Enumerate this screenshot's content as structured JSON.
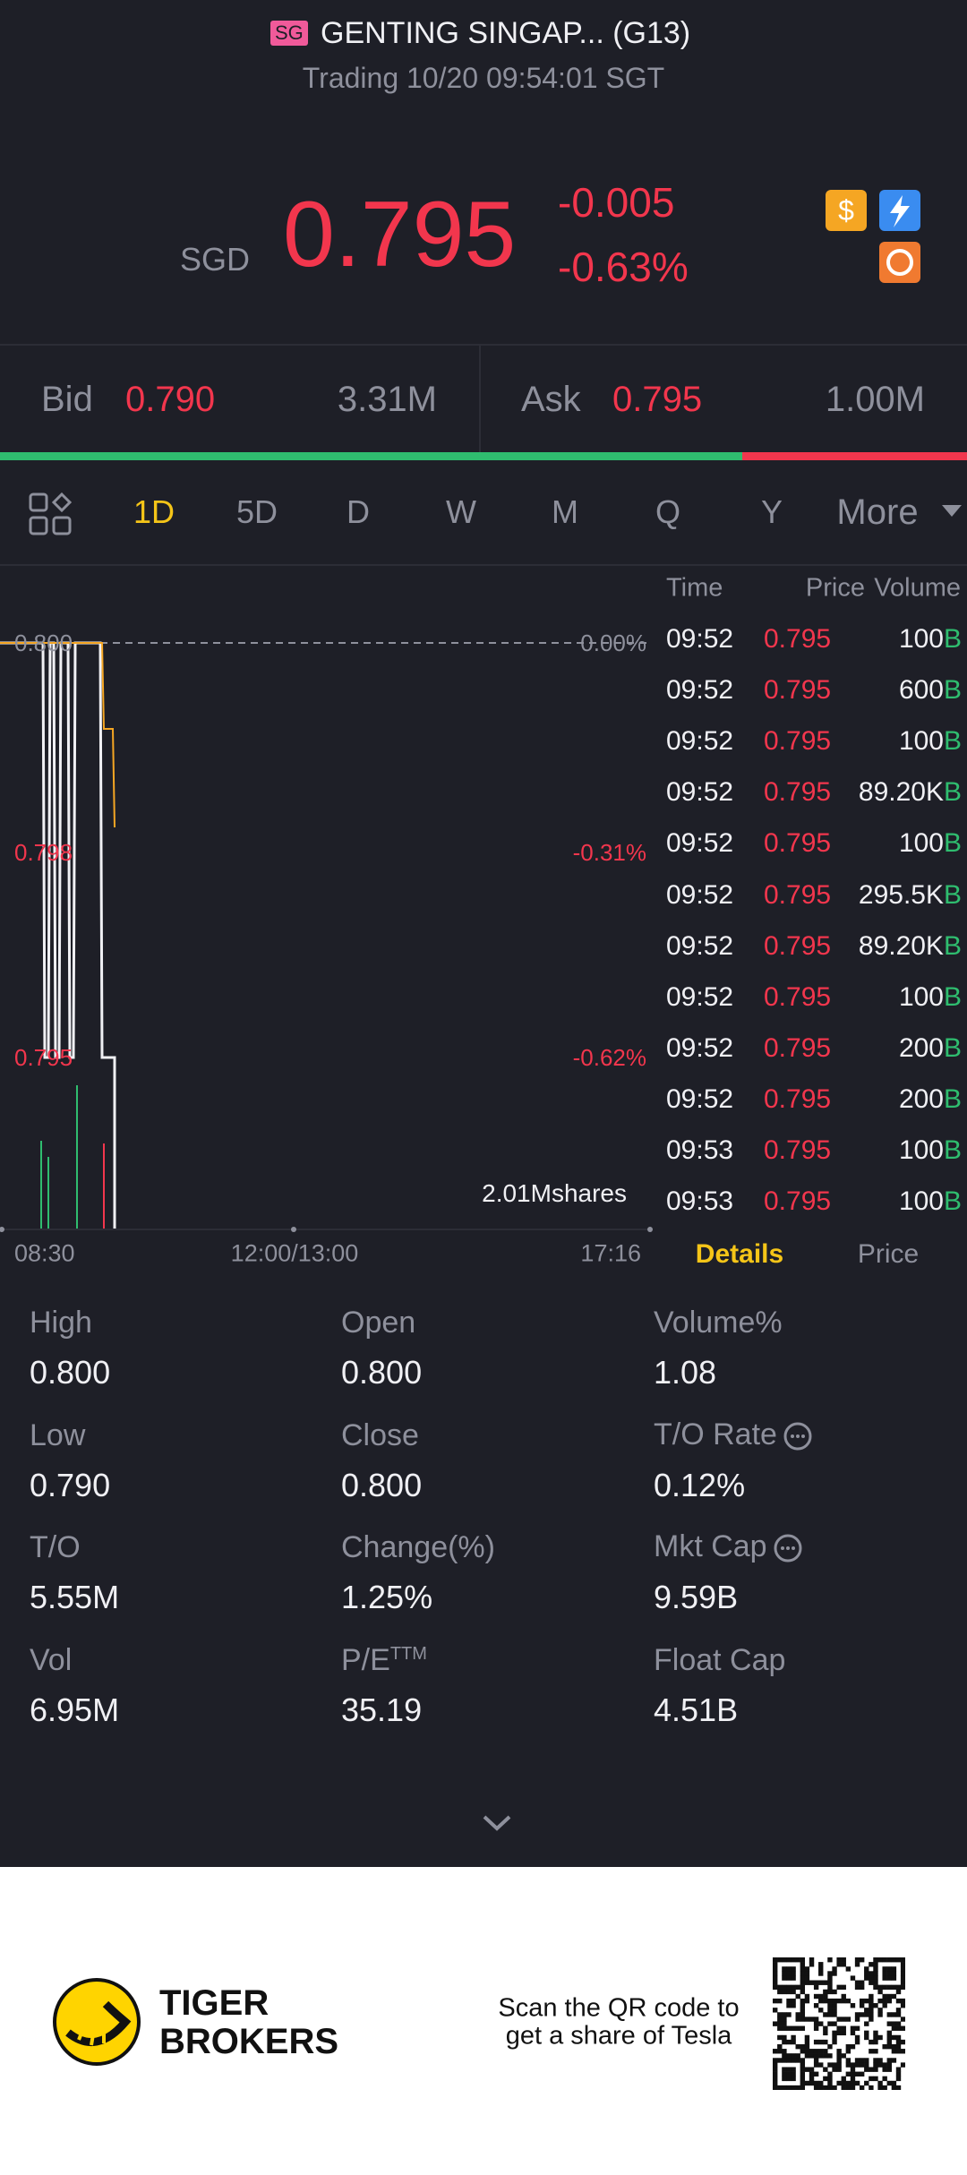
{
  "header": {
    "market": "SG",
    "title": "GENTING SINGAP... (G13)",
    "status": "Trading 10/20 09:54:01 SGT"
  },
  "quote": {
    "currency": "SGD",
    "price": "0.795",
    "change": "-0.005",
    "change_pct": "-0.63%"
  },
  "bidask": {
    "bid_label": "Bid",
    "bid": "0.790",
    "bid_size": "3.31M",
    "ask_label": "Ask",
    "ask": "0.795",
    "ask_size": "1.00M"
  },
  "tabs": [
    "1D",
    "5D",
    "D",
    "W",
    "M",
    "Q",
    "Y",
    "More"
  ],
  "chart": {
    "price_labels": [
      "0.800",
      "0.798",
      "0.795"
    ],
    "pct_labels": [
      "0.00%",
      "-0.31%",
      "-0.62%"
    ],
    "volume_label": "2.01Mshares",
    "time_labels": [
      "08:30",
      "12:00/13:00",
      "17:16"
    ]
  },
  "trades": {
    "headers": [
      "Time",
      "Price",
      "Volume"
    ],
    "rows": [
      {
        "time": "09:52",
        "price": "0.795",
        "volume": "100",
        "side": "B"
      },
      {
        "time": "09:52",
        "price": "0.795",
        "volume": "600",
        "side": "B"
      },
      {
        "time": "09:52",
        "price": "0.795",
        "volume": "100",
        "side": "B"
      },
      {
        "time": "09:52",
        "price": "0.795",
        "volume": "89.20K",
        "side": "B"
      },
      {
        "time": "09:52",
        "price": "0.795",
        "volume": "100",
        "side": "B"
      },
      {
        "time": "09:52",
        "price": "0.795",
        "volume": "295.5K",
        "side": "B"
      },
      {
        "time": "09:52",
        "price": "0.795",
        "volume": "89.20K",
        "side": "B"
      },
      {
        "time": "09:52",
        "price": "0.795",
        "volume": "100",
        "side": "B"
      },
      {
        "time": "09:52",
        "price": "0.795",
        "volume": "200",
        "side": "B"
      },
      {
        "time": "09:52",
        "price": "0.795",
        "volume": "200",
        "side": "B"
      },
      {
        "time": "09:53",
        "price": "0.795",
        "volume": "100",
        "side": "B"
      },
      {
        "time": "09:53",
        "price": "0.795",
        "volume": "100",
        "side": "B"
      }
    ]
  },
  "panel_tabs": [
    "Details",
    "Price"
  ],
  "stats": [
    {
      "label": "High",
      "value": "0.800"
    },
    {
      "label": "Open",
      "value": "0.800"
    },
    {
      "label": "Volume%",
      "value": "1.08"
    },
    {
      "label": "Low",
      "value": "0.790"
    },
    {
      "label": "Close",
      "value": "0.800"
    },
    {
      "label": "T/O Rate",
      "value": "0.12%"
    },
    {
      "label": "T/O",
      "value": "5.55M"
    },
    {
      "label": "Change(%)",
      "value": "1.25%"
    },
    {
      "label": "Mkt Cap",
      "value": "9.59B"
    },
    {
      "label": "Vol",
      "value": "6.95M"
    },
    {
      "label": "P/E",
      "label_sup": "TTM",
      "value": "35.19"
    },
    {
      "label": "Float Cap",
      "value": "4.51B"
    }
  ],
  "footer": {
    "brand": [
      "TIGER",
      "BROKERS"
    ],
    "promo": [
      "Scan the QR code to",
      "get a share of Tesla"
    ]
  }
}
